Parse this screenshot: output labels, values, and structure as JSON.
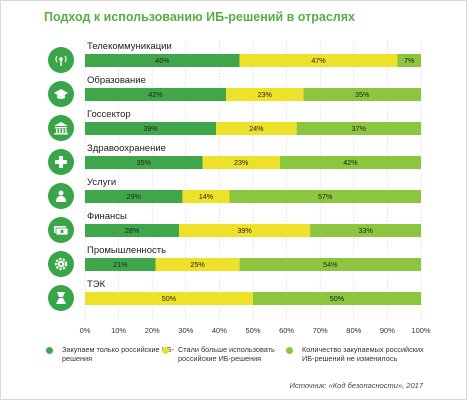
{
  "title": "Подход к использованию ИБ-решений в отраслях",
  "colors": {
    "dark_green": "#3fa74a",
    "yellow": "#eee12a",
    "light_green": "#8cc63f",
    "icon_green": "#38a548",
    "title_green": "#5aac44"
  },
  "chart_data": {
    "type": "bar",
    "orientation": "horizontal",
    "stacked": true,
    "title": "Подход к использованию ИБ-решений в отраслях",
    "categories": [
      "Телекоммуникации",
      "Образование",
      "Госсектор",
      "Здравоохранение",
      "Услуги",
      "Финансы",
      "Промышленность",
      "ТЭК"
    ],
    "category_icons": [
      "antenna-icon",
      "graduation-cap-icon",
      "government-building-icon",
      "medical-cross-icon",
      "person-service-icon",
      "money-stack-icon",
      "gear-icon",
      "fuel-icon"
    ],
    "series": [
      {
        "name": "Закупаем только российские ИБ-решения",
        "color": "#3fa74a",
        "values": [
          46,
          42,
          39,
          35,
          29,
          28,
          21,
          0
        ]
      },
      {
        "name": "Стали больше использовать российские ИБ-решения",
        "color": "#eee12a",
        "values": [
          47,
          23,
          24,
          23,
          14,
          39,
          25,
          50
        ]
      },
      {
        "name": "Количество закупаемых российских ИБ-решений не изменилось",
        "color": "#8cc63f",
        "values": [
          7,
          35,
          37,
          42,
          57,
          33,
          54,
          50
        ]
      }
    ],
    "xlim": [
      0,
      100
    ],
    "xticks": [
      "0%",
      "10%",
      "20%",
      "30%",
      "40%",
      "50%",
      "60%",
      "70%",
      "80%",
      "90%",
      "100%"
    ],
    "grid": "vertical",
    "legend_position": "bottom"
  },
  "legend": [
    {
      "label": "Закупаем только российские ИБ-решения"
    },
    {
      "label": "Стали больше использовать российские ИБ-решения"
    },
    {
      "label": "Количество закупаемых российских ИБ-решений не изменилось"
    }
  ],
  "source": "Источник: «Код безопасности», 2017"
}
